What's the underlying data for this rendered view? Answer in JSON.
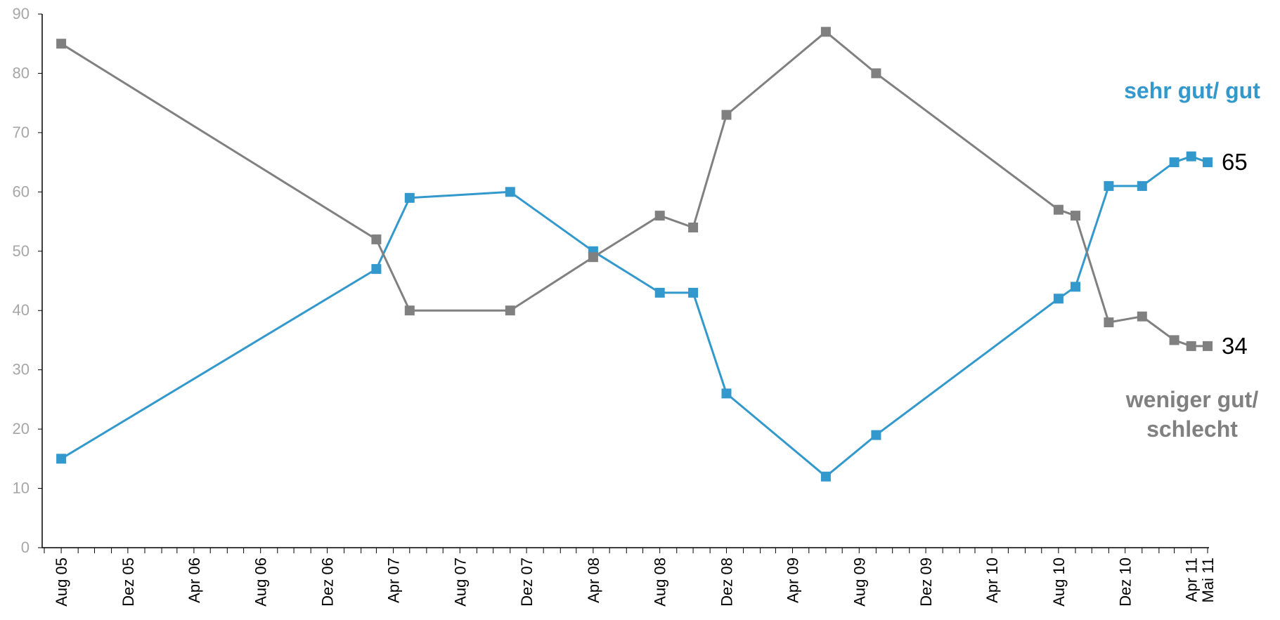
{
  "chart_data": {
    "type": "line",
    "title": "",
    "xlabel": "",
    "ylabel": "",
    "ylim": [
      0,
      90
    ],
    "yticks": [
      0,
      10,
      20,
      30,
      40,
      50,
      60,
      70,
      80,
      90
    ],
    "xlim": [
      "2005-07-01",
      "2011-05-01"
    ],
    "x_tick_labels": [
      "Aug 05",
      "Dez 05",
      "Apr 06",
      "Aug 06",
      "Dez 06",
      "Apr 07",
      "Aug 07",
      "Dez 07",
      "Apr 08",
      "Aug 08",
      "Dez 08",
      "Apr 09",
      "Aug 09",
      "Dez 09",
      "Apr 10",
      "Aug 10",
      "Dez 10",
      "Apr 11",
      "Mai 11"
    ],
    "x_tick_dates": [
      "2005-08-01",
      "2005-12-01",
      "2006-04-01",
      "2006-08-01",
      "2006-12-01",
      "2007-04-01",
      "2007-08-01",
      "2007-12-01",
      "2008-04-01",
      "2008-08-01",
      "2008-12-01",
      "2009-04-01",
      "2009-08-01",
      "2009-12-01",
      "2010-04-01",
      "2010-08-01",
      "2010-12-01",
      "2011-04-01",
      "2011-05-01"
    ],
    "grid": false,
    "series": [
      {
        "name": "sehr gut/ gut",
        "color": "#3399cc",
        "end_label": "65",
        "points": [
          [
            "2005-08-01",
            15
          ],
          [
            "2007-03-01",
            47
          ],
          [
            "2007-05-01",
            59
          ],
          [
            "2007-11-01",
            60
          ],
          [
            "2008-04-01",
            50
          ],
          [
            "2008-08-01",
            43
          ],
          [
            "2008-10-01",
            43
          ],
          [
            "2008-12-01",
            26
          ],
          [
            "2009-06-01",
            12
          ],
          [
            "2009-09-01",
            19
          ],
          [
            "2010-08-01",
            42
          ],
          [
            "2010-09-01",
            44
          ],
          [
            "2010-11-01",
            61
          ],
          [
            "2011-01-01",
            61
          ],
          [
            "2011-03-01",
            65
          ],
          [
            "2011-04-01",
            66
          ],
          [
            "2011-05-01",
            65
          ]
        ]
      },
      {
        "name": "weniger gut/ schlecht",
        "color": "#808080",
        "end_label": "34",
        "points": [
          [
            "2005-08-01",
            85
          ],
          [
            "2007-03-01",
            52
          ],
          [
            "2007-05-01",
            40
          ],
          [
            "2007-11-01",
            40
          ],
          [
            "2008-04-01",
            49
          ],
          [
            "2008-08-01",
            56
          ],
          [
            "2008-10-01",
            54
          ],
          [
            "2008-12-01",
            73
          ],
          [
            "2009-06-01",
            87
          ],
          [
            "2009-09-01",
            80
          ],
          [
            "2010-08-01",
            57
          ],
          [
            "2010-09-01",
            56
          ],
          [
            "2010-11-01",
            38
          ],
          [
            "2011-01-01",
            39
          ],
          [
            "2011-03-01",
            35
          ],
          [
            "2011-04-01",
            34
          ],
          [
            "2011-05-01",
            34
          ]
        ]
      }
    ],
    "legend": [
      {
        "lines": [
          "sehr gut/ gut"
        ],
        "color": "#3399cc"
      },
      {
        "lines": [
          "weniger gut/",
          "schlecht"
        ],
        "color": "#808080"
      }
    ]
  }
}
